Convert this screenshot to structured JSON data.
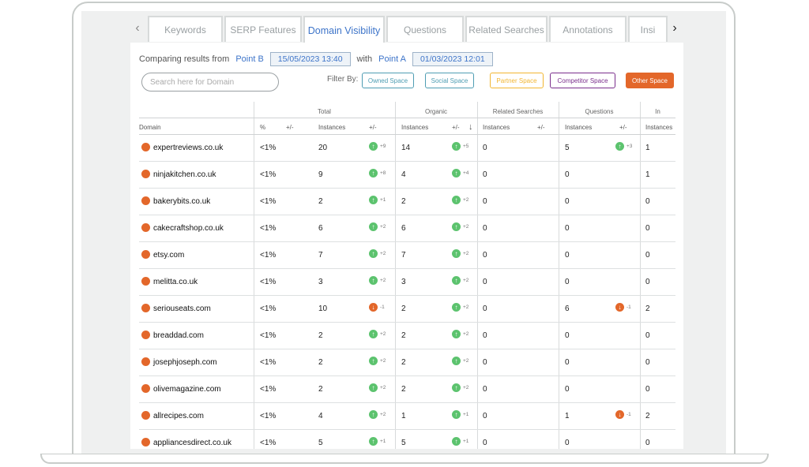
{
  "tabs": [
    "Keywords",
    "SERP Features",
    "Domain Visibility",
    "Questions",
    "Related Searches",
    "Annotations",
    "Insi"
  ],
  "active_tab": "Domain Visibility",
  "nav": {
    "left": "‹",
    "right": "›"
  },
  "compare": {
    "prefix": "Comparing results from",
    "point_b_label": "Point B",
    "point_b_date": "15/05/2023 13:40",
    "with": "with",
    "point_a_label": "Point A",
    "point_a_date": "01/03/2023 12:01"
  },
  "search": {
    "placeholder": "Search here for Domain"
  },
  "filter": {
    "label": "Filter By:",
    "chips": [
      {
        "label": "Owned Space",
        "color": "#4f9db3"
      },
      {
        "label": "Social Space",
        "color": "#4f9db3"
      },
      {
        "label": "Partner Space",
        "color": "#f2b632"
      },
      {
        "label": "Competitor Space",
        "color": "#7a2e8c"
      },
      {
        "label": "Other Space",
        "color": "#e3672a"
      }
    ]
  },
  "table": {
    "groups": [
      "Total",
      "Organic",
      "Related Searches",
      "Questions",
      "In"
    ],
    "columns": [
      "Domain",
      "%",
      "+/-",
      "Instances",
      "+/-",
      "Instances",
      "+/-",
      "Instances",
      "+/-",
      "Instances",
      "+/-",
      "Instances"
    ],
    "rows": [
      {
        "domain": "expertreviews.co.uk",
        "pct": "<1%",
        "total": "20",
        "total_chg": {
          "dir": "up",
          "val": "+9"
        },
        "organic": "14",
        "organic_chg": {
          "dir": "up",
          "val": "+5"
        },
        "related": "0",
        "questions": "5",
        "questions_chg": {
          "dir": "up",
          "val": "+3"
        },
        "in": "1"
      },
      {
        "domain": "ninjakitchen.co.uk",
        "pct": "<1%",
        "total": "9",
        "total_chg": {
          "dir": "up",
          "val": "+8"
        },
        "organic": "4",
        "organic_chg": {
          "dir": "up",
          "val": "+4"
        },
        "related": "0",
        "questions": "0",
        "questions_chg": null,
        "in": "1"
      },
      {
        "domain": "bakerybits.co.uk",
        "pct": "<1%",
        "total": "2",
        "total_chg": {
          "dir": "up",
          "val": "+1"
        },
        "organic": "2",
        "organic_chg": {
          "dir": "up",
          "val": "+2"
        },
        "related": "0",
        "questions": "0",
        "questions_chg": null,
        "in": "0"
      },
      {
        "domain": "cakecraftshop.co.uk",
        "pct": "<1%",
        "total": "6",
        "total_chg": {
          "dir": "up",
          "val": "+2"
        },
        "organic": "6",
        "organic_chg": {
          "dir": "up",
          "val": "+2"
        },
        "related": "0",
        "questions": "0",
        "questions_chg": null,
        "in": "0"
      },
      {
        "domain": "etsy.com",
        "pct": "<1%",
        "total": "7",
        "total_chg": {
          "dir": "up",
          "val": "+2"
        },
        "organic": "7",
        "organic_chg": {
          "dir": "up",
          "val": "+2"
        },
        "related": "0",
        "questions": "0",
        "questions_chg": null,
        "in": "0"
      },
      {
        "domain": "melitta.co.uk",
        "pct": "<1%",
        "total": "3",
        "total_chg": {
          "dir": "up",
          "val": "+2"
        },
        "organic": "3",
        "organic_chg": {
          "dir": "up",
          "val": "+2"
        },
        "related": "0",
        "questions": "0",
        "questions_chg": null,
        "in": "0"
      },
      {
        "domain": "seriouseats.com",
        "pct": "<1%",
        "total": "10",
        "total_chg": {
          "dir": "down",
          "val": "-1"
        },
        "organic": "2",
        "organic_chg": {
          "dir": "up",
          "val": "+2"
        },
        "related": "0",
        "questions": "6",
        "questions_chg": {
          "dir": "down",
          "val": "-1"
        },
        "in": "2"
      },
      {
        "domain": "breaddad.com",
        "pct": "<1%",
        "total": "2",
        "total_chg": {
          "dir": "up",
          "val": "+2"
        },
        "organic": "2",
        "organic_chg": {
          "dir": "up",
          "val": "+2"
        },
        "related": "0",
        "questions": "0",
        "questions_chg": null,
        "in": "0"
      },
      {
        "domain": "josephjoseph.com",
        "pct": "<1%",
        "total": "2",
        "total_chg": {
          "dir": "up",
          "val": "+2"
        },
        "organic": "2",
        "organic_chg": {
          "dir": "up",
          "val": "+2"
        },
        "related": "0",
        "questions": "0",
        "questions_chg": null,
        "in": "0"
      },
      {
        "domain": "olivemagazine.com",
        "pct": "<1%",
        "total": "2",
        "total_chg": {
          "dir": "up",
          "val": "+2"
        },
        "organic": "2",
        "organic_chg": {
          "dir": "up",
          "val": "+2"
        },
        "related": "0",
        "questions": "0",
        "questions_chg": null,
        "in": "0"
      },
      {
        "domain": "allrecipes.com",
        "pct": "<1%",
        "total": "4",
        "total_chg": {
          "dir": "up",
          "val": "+2"
        },
        "organic": "1",
        "organic_chg": {
          "dir": "up",
          "val": "+1"
        },
        "related": "0",
        "questions": "1",
        "questions_chg": {
          "dir": "down",
          "val": "-1"
        },
        "in": "2"
      },
      {
        "domain": "appliancesdirect.co.uk",
        "pct": "<1%",
        "total": "5",
        "total_chg": {
          "dir": "up",
          "val": "+1"
        },
        "organic": "5",
        "organic_chg": {
          "dir": "up",
          "val": "+1"
        },
        "related": "0",
        "questions": "0",
        "questions_chg": null,
        "in": "0"
      }
    ]
  },
  "colors": {
    "accent": "#3d74c9",
    "other_space": "#e3672a",
    "up": "#5cc36e",
    "down": "#e3672a"
  }
}
